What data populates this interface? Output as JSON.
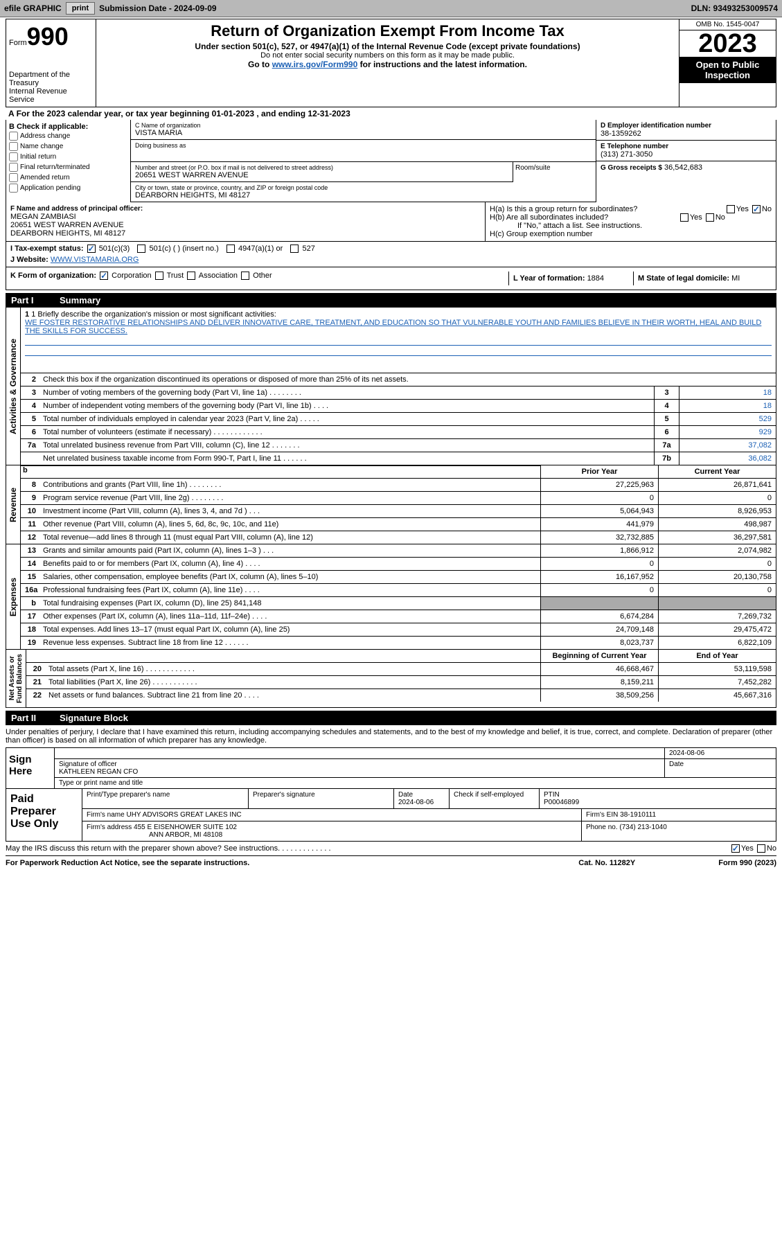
{
  "toolbar": {
    "efile": "efile GRAPHIC",
    "print": "print",
    "submission": "Submission Date - 2024-09-09",
    "dln": "DLN: 93493253009574"
  },
  "head": {
    "form_label": "Form",
    "form_num": "990",
    "dept": "Department of the Treasury\nInternal Revenue Service",
    "title": "Return of Organization Exempt From Income Tax",
    "sub1": "Under section 501(c), 527, or 4947(a)(1) of the Internal Revenue Code (except private foundations)",
    "sub2": "Do not enter social security numbers on this form as it may be made public.",
    "sub3_pre": "Go to ",
    "sub3_link": "www.irs.gov/Form990",
    "sub3_post": " for instructions and the latest information.",
    "omb": "OMB No. 1545-0047",
    "year": "2023",
    "inspect": "Open to Public Inspection"
  },
  "a": "For the 2023 calendar year, or tax year beginning 01-01-2023   , and ending 12-31-2023",
  "b": {
    "label": "B Check if applicable:",
    "items": [
      "Address change",
      "Name change",
      "Initial return",
      "Final return/terminated",
      "Amended return",
      "Application pending"
    ]
  },
  "c": {
    "name_lab": "C Name of organization",
    "name": "VISTA MARIA",
    "dba_lab": "Doing business as",
    "street_lab": "Number and street (or P.O. box if mail is not delivered to street address)",
    "street": "20651 WEST WARREN AVENUE",
    "room_lab": "Room/suite",
    "city_lab": "City or town, state or province, country, and ZIP or foreign postal code",
    "city": "DEARBORN HEIGHTS, MI  48127"
  },
  "d": {
    "ein_lab": "D Employer identification number",
    "ein": "38-1359262",
    "phone_lab": "E Telephone number",
    "phone": "(313) 271-3050",
    "gross_lab": "G Gross receipts $",
    "gross": "36,542,683"
  },
  "f": {
    "lab": "F Name and address of principal officer:",
    "name": "MEGAN ZAMBIASI",
    "street": "20651 WEST WARREN AVENUE",
    "city": "DEARBORN HEIGHTS, MI  48127"
  },
  "h": {
    "a_lab": "H(a)  Is this a group return for subordinates?",
    "b_lab": "H(b)  Are all subordinates included?",
    "b_note": "If \"No,\" attach a list. See instructions.",
    "c_lab": "H(c)  Group exemption number  "
  },
  "i": {
    "lab": "I    Tax-exempt status:",
    "opts": [
      "501(c)(3)",
      "501(c) (  ) (insert no.)",
      "4947(a)(1) or",
      "527"
    ]
  },
  "j": {
    "lab": "J    Website: ",
    "val": "WWW.VISTAMARIA.ORG"
  },
  "k": {
    "lab": "K Form of organization:",
    "opts": [
      "Corporation",
      "Trust",
      "Association",
      "Other"
    ]
  },
  "l": {
    "lab": "L Year of formation: ",
    "val": "1884"
  },
  "m": {
    "lab": "M State of legal domicile: ",
    "val": "MI"
  },
  "part1": {
    "hdr_num": "Part I",
    "hdr_txt": "Summary",
    "side": {
      "ag": "Activities & Governance",
      "rev": "Revenue",
      "exp": "Expenses",
      "na": "Net Assets or\nFund Balances"
    },
    "mission_lab": "1  Briefly describe the organization's mission or most significant activities:",
    "mission": "WE FOSTER RESTORATIVE RELATIONSHIPS AND DELIVER INNOVATIVE CARE, TREATMENT, AND EDUCATION SO THAT VULNERABLE YOUTH AND FAMILIES BELIEVE IN THEIR WORTH, HEAL AND BUILD THE SKILLS FOR SUCCESS.",
    "r2": "Check this box       if the organization discontinued its operations or disposed of more than 25% of its net assets.",
    "ag_rows": [
      {
        "n": "3",
        "t": "Number of voting members of the governing body (Part VI, line 1a)   .   .   .   .   .   .   .   .",
        "b": "3",
        "v": "18"
      },
      {
        "n": "4",
        "t": "Number of independent voting members of the governing body (Part VI, line 1b)  .   .   .   .",
        "b": "4",
        "v": "18"
      },
      {
        "n": "5",
        "t": "Total number of individuals employed in calendar year 2023 (Part V, line 2a)  .   .   .   .   .",
        "b": "5",
        "v": "529"
      },
      {
        "n": "6",
        "t": "Total number of volunteers (estimate if necessary)   .   .   .   .   .   .   .   .   .   .   .   .",
        "b": "6",
        "v": "929"
      },
      {
        "n": "7a",
        "t": "Total unrelated business revenue from Part VIII, column (C), line 12  .   .   .   .   .   .   .",
        "b": "7a",
        "v": "37,082"
      },
      {
        "n": "",
        "t": "Net unrelated business taxable income from Form 990-T, Part I, line 11   .   .   .   .   .   .",
        "b": "7b",
        "v": "36,082"
      }
    ],
    "rev_hdr": {
      "prior": "Prior Year",
      "curr": "Current Year"
    },
    "rev_rows": [
      {
        "n": "8",
        "t": "Contributions and grants (Part VIII, line 1h)   .   .   .   .   .   .   .   .",
        "p": "27,225,963",
        "c": "26,871,641"
      },
      {
        "n": "9",
        "t": "Program service revenue (Part VIII, line 2g)   .   .   .   .   .   .   .   .",
        "p": "0",
        "c": "0"
      },
      {
        "n": "10",
        "t": "Investment income (Part VIII, column (A), lines 3, 4, and 7d )   .   .   .",
        "p": "5,064,943",
        "c": "8,926,953"
      },
      {
        "n": "11",
        "t": "Other revenue (Part VIII, column (A), lines 5, 6d, 8c, 9c, 10c, and 11e)",
        "p": "441,979",
        "c": "498,987"
      },
      {
        "n": "12",
        "t": "Total revenue—add lines 8 through 11 (must equal Part VIII, column (A), line 12)",
        "p": "32,732,885",
        "c": "36,297,581"
      }
    ],
    "exp_rows": [
      {
        "n": "13",
        "t": "Grants and similar amounts paid (Part IX, column (A), lines 1–3 )  .   .   .",
        "p": "1,866,912",
        "c": "2,074,982"
      },
      {
        "n": "14",
        "t": "Benefits paid to or for members (Part IX, column (A), line 4)  .   .   .   .",
        "p": "0",
        "c": "0"
      },
      {
        "n": "15",
        "t": "Salaries, other compensation, employee benefits (Part IX, column (A), lines 5–10)",
        "p": "16,167,952",
        "c": "20,130,758"
      },
      {
        "n": "16a",
        "t": "Professional fundraising fees (Part IX, column (A), line 11e)  .   .   .   .",
        "p": "0",
        "c": "0"
      },
      {
        "n": "b",
        "t": "Total fundraising expenses (Part IX, column (D), line 25) 841,148",
        "p": "gray",
        "c": "gray"
      },
      {
        "n": "17",
        "t": "Other expenses (Part IX, column (A), lines 11a–11d, 11f–24e)  .   .   .   .",
        "p": "6,674,284",
        "c": "7,269,732"
      },
      {
        "n": "18",
        "t": "Total expenses. Add lines 13–17 (must equal Part IX, column (A), line 25)",
        "p": "24,709,148",
        "c": "29,475,472"
      },
      {
        "n": "19",
        "t": "Revenue less expenses. Subtract line 18 from line 12   .   .   .   .   .   .",
        "p": "8,023,737",
        "c": "6,822,109"
      }
    ],
    "na_hdr": {
      "b": "Beginning of Current Year",
      "e": "End of Year"
    },
    "na_rows": [
      {
        "n": "20",
        "t": "Total assets (Part X, line 16)  .   .   .   .   .   .   .   .   .   .   .   .",
        "p": "46,668,467",
        "c": "53,119,598"
      },
      {
        "n": "21",
        "t": "Total liabilities (Part X, line 26)  .   .   .   .   .   .   .   .   .   .   .",
        "p": "8,159,211",
        "c": "7,452,282"
      },
      {
        "n": "22",
        "t": "Net assets or fund balances. Subtract line 21 from line 20  .   .   .   .",
        "p": "38,509,256",
        "c": "45,667,316"
      }
    ]
  },
  "part2": {
    "hdr_num": "Part II",
    "hdr_txt": "Signature Block",
    "decl": "Under penalties of perjury, I declare that I have examined this return, including accompanying schedules and statements, and to the best of my knowledge and belief, it is true, correct, and complete. Declaration of preparer (other than officer) is based on all information of which preparer has any knowledge.",
    "sign_here": "Sign Here",
    "sig_date": "2024-08-06",
    "sig_of": "Signature of officer",
    "sig_name": "KATHLEEN REGAN CFO",
    "sig_type": "Type or print name and title",
    "date_lab": "Date"
  },
  "paid": {
    "lab": "Paid Preparer Use Only",
    "h": [
      "Print/Type preparer's name",
      "Preparer's signature",
      "Date",
      "Check       if self-employed",
      "PTIN"
    ],
    "date": "2024-08-06",
    "ptin": "P00046899",
    "firm_lab": "Firm's name      ",
    "firm": "UHY ADVISORS GREAT LAKES INC",
    "ein_lab": "Firm's EIN  ",
    "ein": "38-1910111",
    "addr_lab": "Firm's address  ",
    "addr1": "455 E EISENHOWER SUITE 102",
    "addr2": "ANN ARBOR, MI  48108",
    "ph_lab": "Phone no. ",
    "ph": "(734) 213-1040"
  },
  "may": "May the IRS discuss this return with the preparer shown above? See instructions.   .   .   .   .   .   .   .   .   .   .   .   .",
  "foot": {
    "l": "For Paperwork Reduction Act Notice, see the separate instructions.",
    "m": "Cat. No. 11282Y",
    "r": "Form 990 (2023)"
  }
}
